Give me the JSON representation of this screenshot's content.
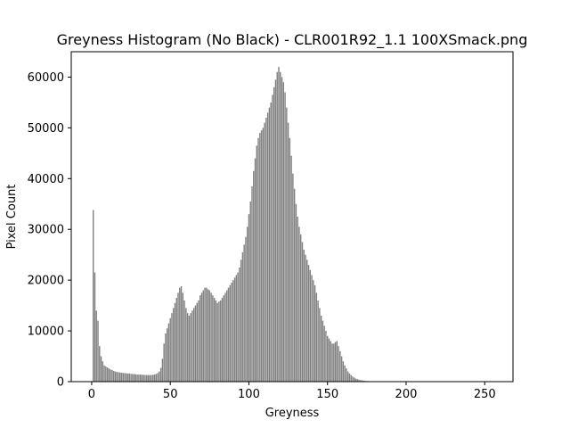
{
  "chart_data": {
    "type": "bar",
    "title": "Greyness Histogram (No Black) - CLR001R92_1.1 100XSmack.png",
    "xlabel": "Greyness",
    "ylabel": "Pixel Count",
    "xlim": [
      -13,
      268
    ],
    "ylim": [
      0,
      65000
    ],
    "xticks": [
      0,
      50,
      100,
      150,
      200,
      250
    ],
    "yticks": [
      0,
      10000,
      20000,
      30000,
      40000,
      50000,
      60000
    ],
    "bar_color": "#808080",
    "grid": false,
    "x_start": 1,
    "values": [
      33800,
      21500,
      14000,
      12000,
      7000,
      5000,
      4000,
      3200,
      3000,
      2800,
      2600,
      2400,
      2300,
      2100,
      2000,
      1900,
      1850,
      1800,
      1750,
      1700,
      1700,
      1650,
      1600,
      1600,
      1550,
      1500,
      1500,
      1450,
      1400,
      1400,
      1400,
      1350,
      1350,
      1300,
      1300,
      1300,
      1300,
      1300,
      1350,
      1400,
      1500,
      1700,
      2000,
      2700,
      4500,
      7500,
      9500,
      10500,
      11500,
      12500,
      13500,
      14500,
      15500,
      16500,
      17500,
      18500,
      18800,
      17500,
      16000,
      14500,
      13500,
      13000,
      13500,
      14000,
      14500,
      15000,
      15500,
      16000,
      17000,
      17500,
      18000,
      18500,
      18500,
      18200,
      18000,
      17500,
      17000,
      16500,
      16000,
      15500,
      15800,
      16000,
      16500,
      17000,
      17500,
      18000,
      18500,
      19000,
      19500,
      20000,
      20500,
      21000,
      21500,
      22500,
      24000,
      25500,
      27000,
      28500,
      30500,
      33000,
      35500,
      38500,
      41500,
      44000,
      46500,
      48000,
      49000,
      49500,
      50000,
      51000,
      52000,
      53000,
      54000,
      55000,
      56500,
      58000,
      59500,
      61000,
      62000,
      61000,
      60000,
      59000,
      57000,
      54000,
      51000,
      48000,
      44500,
      41000,
      38000,
      35000,
      32500,
      30500,
      29000,
      27500,
      26000,
      25000,
      24000,
      23000,
      22000,
      21000,
      20000,
      19000,
      17500,
      16000,
      14500,
      13000,
      12000,
      11000,
      10000,
      9000,
      8500,
      8000,
      7500,
      7500,
      7800,
      8000,
      7000,
      6000,
      5000,
      4000,
      3200,
      2600,
      2000,
      1600,
      1300,
      1000,
      800,
      600,
      500,
      400,
      300,
      250,
      200,
      150,
      120,
      100,
      80,
      60,
      50,
      40,
      30,
      20
    ]
  }
}
